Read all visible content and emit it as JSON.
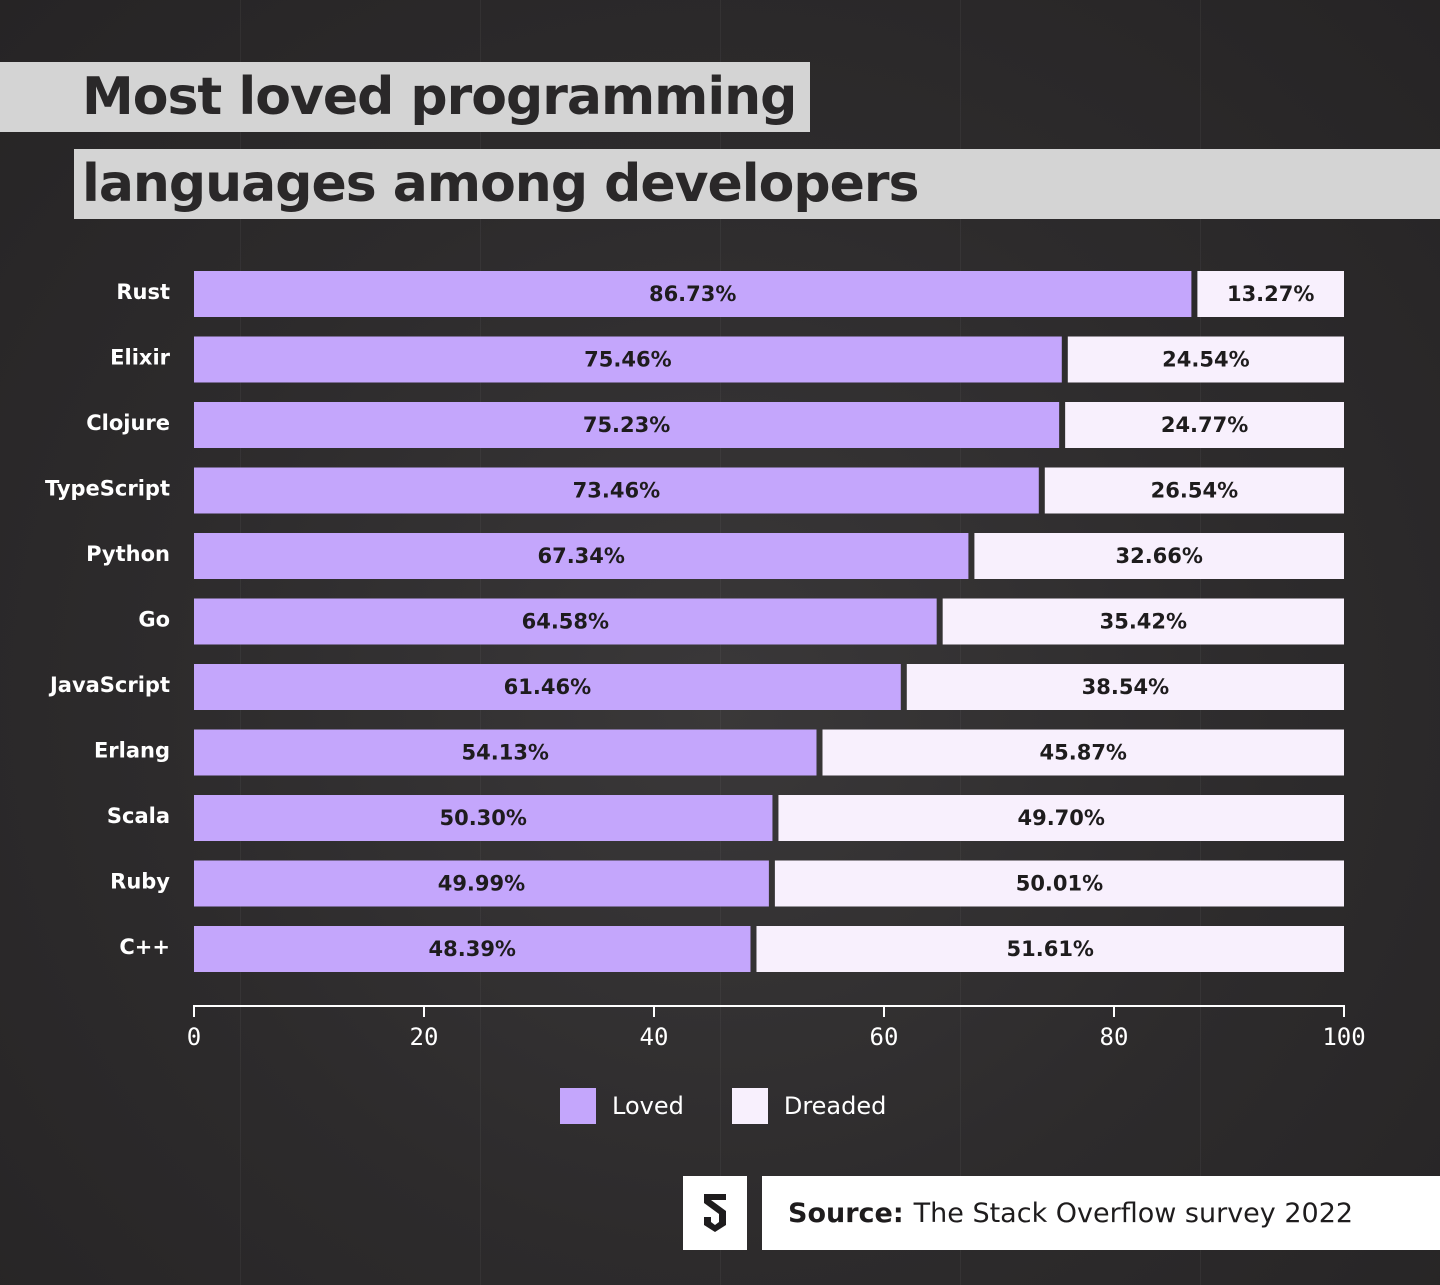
{
  "title": {
    "line1": "Most loved programming",
    "line2": "languages among developers"
  },
  "colors": {
    "loved": "#c4a6fc",
    "dreaded": "#f8f0fd",
    "background": "#2e2c2d",
    "title_bg": "#d4d4d4",
    "text_dark": "#1e1c1d",
    "text_light": "#ffffff"
  },
  "chart_data": {
    "type": "bar",
    "orientation": "horizontal",
    "stacked": true,
    "categories": [
      "Rust",
      "Elixir",
      "Clojure",
      "TypeScript",
      "Python",
      "Go",
      "JavaScript",
      "Erlang",
      "Scala",
      "Ruby",
      "C++"
    ],
    "series": [
      {
        "name": "Loved",
        "values": [
          86.73,
          75.46,
          75.23,
          73.46,
          67.34,
          64.58,
          61.46,
          54.13,
          50.3,
          49.99,
          48.39
        ],
        "labels": [
          "86.73%",
          "75.46%",
          "75.23%",
          "73.46%",
          "67.34%",
          "64.58%",
          "61.46%",
          "54.13%",
          "50.30%",
          "49.99%",
          "48.39%"
        ]
      },
      {
        "name": "Dreaded",
        "values": [
          13.27,
          24.54,
          24.77,
          26.54,
          32.66,
          35.42,
          38.54,
          45.87,
          49.7,
          50.01,
          51.61
        ],
        "labels": [
          "13.27%",
          "24.54%",
          "24.77%",
          "26.54%",
          "32.66%",
          "35.42%",
          "38.54%",
          "45.87%",
          "49.70%",
          "50.01%",
          "51.61%"
        ]
      }
    ],
    "xlim": [
      0,
      100
    ],
    "xticks": [
      "0",
      "20",
      "40",
      "60",
      "80",
      "100"
    ],
    "legend_position": "bottom",
    "grid": false
  },
  "legend": {
    "loved_label": "Loved",
    "dreaded_label": "Dreaded"
  },
  "source": {
    "label": "Source:",
    "text": "The Stack Overflow survey 2022"
  },
  "logo": {
    "icon": "s-logo-icon"
  }
}
